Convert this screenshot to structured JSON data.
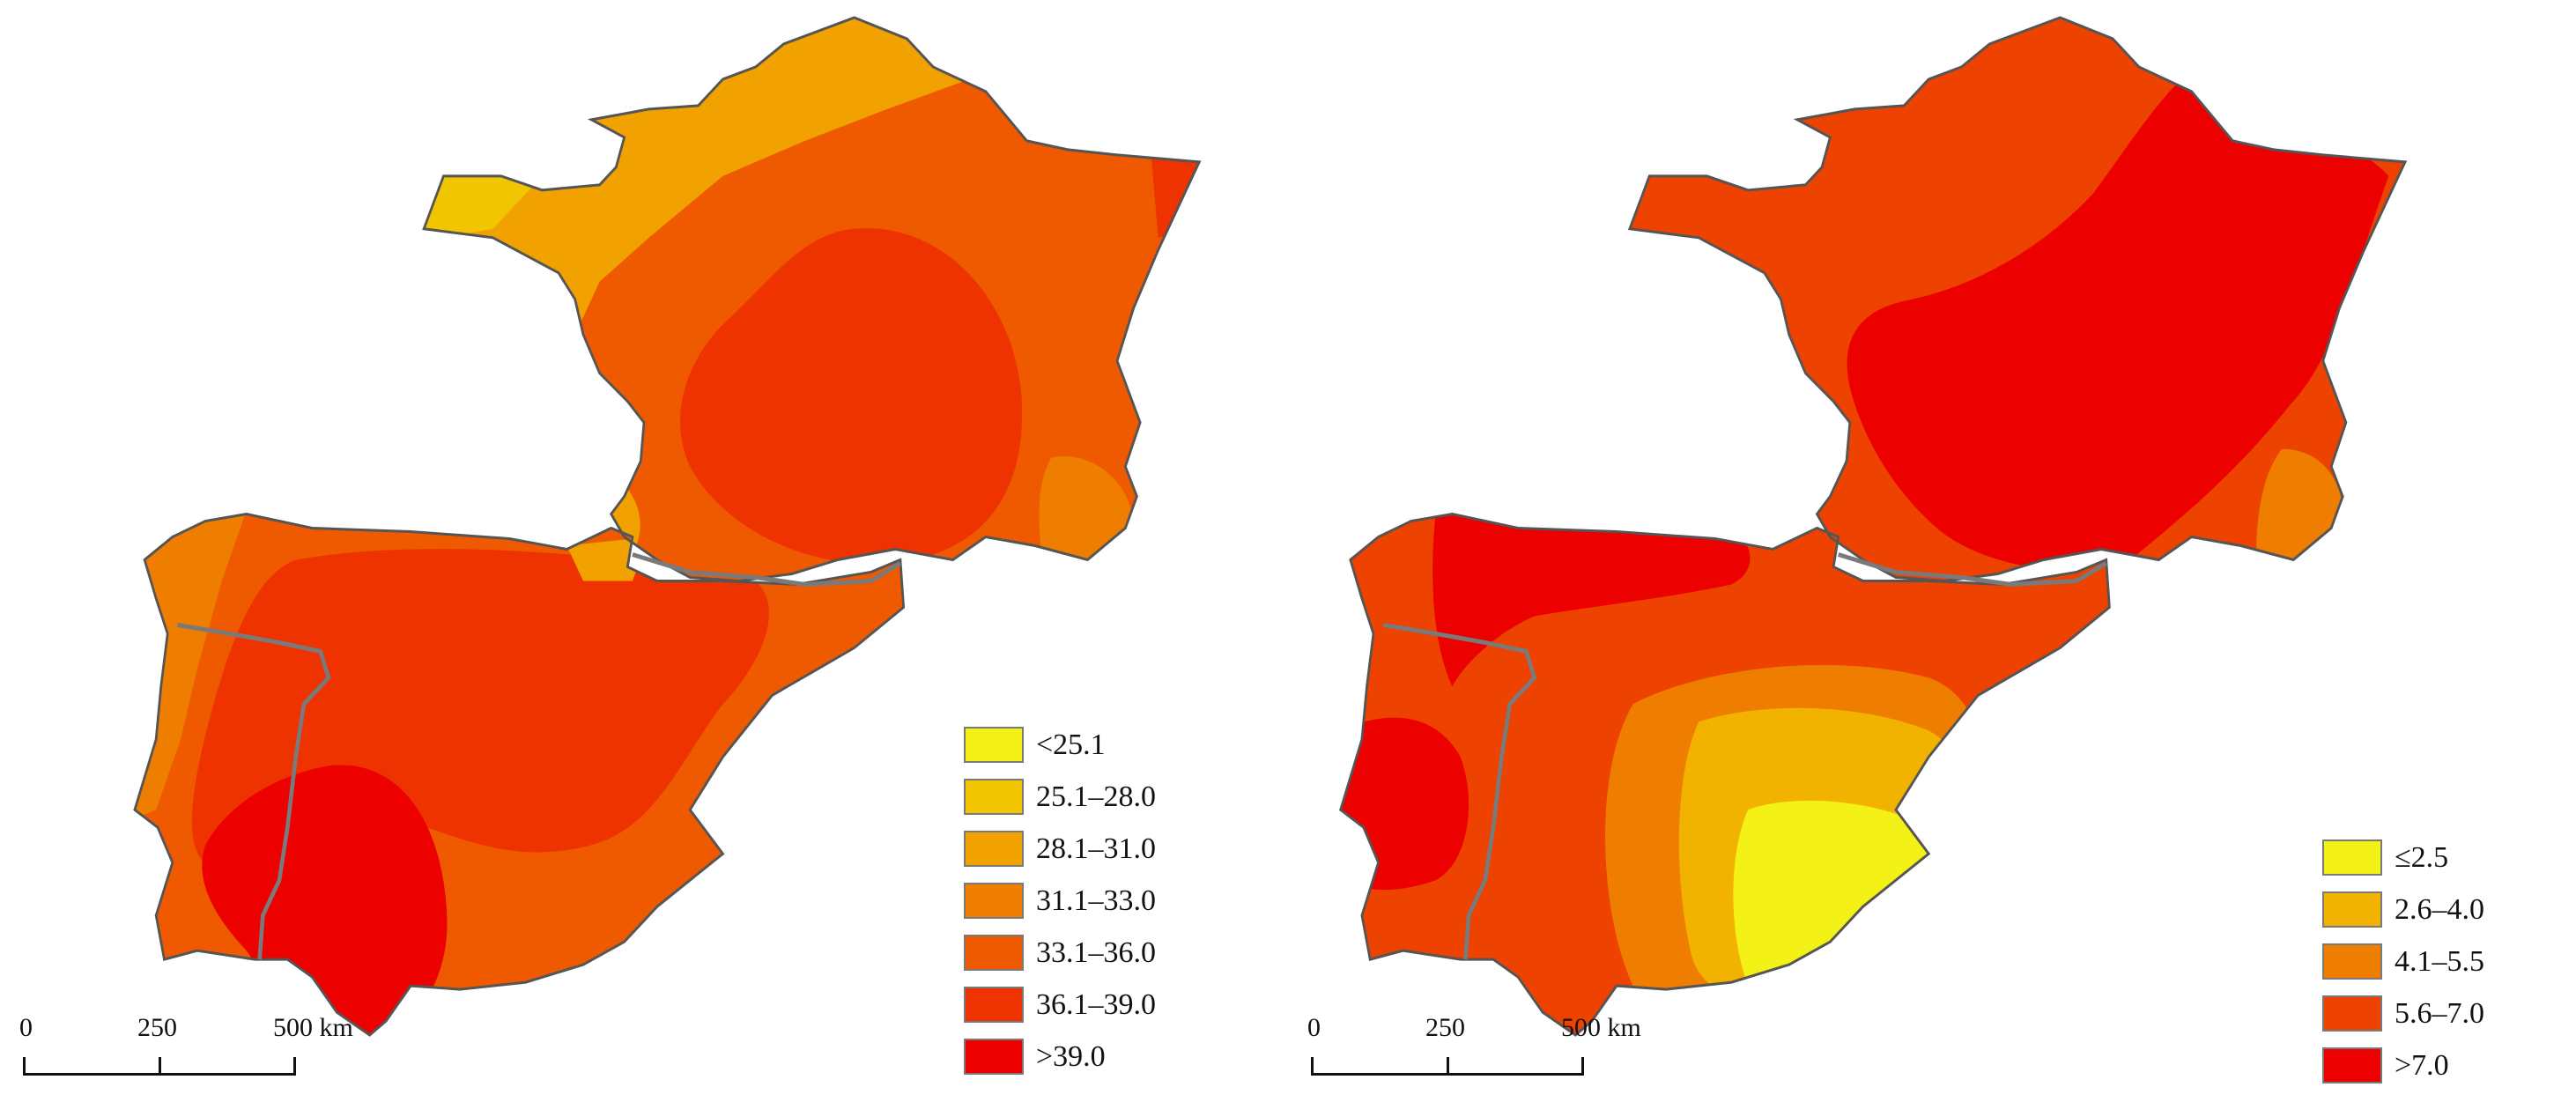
{
  "colors": {
    "c1": "#f4f116",
    "c2": "#f1c500",
    "c3": "#f1a100",
    "c4": "#ef7e00",
    "c5": "#ef5a00",
    "c6": "#ee3200",
    "c7": "#ec0000",
    "border": "#7a7a7a",
    "coast": "#555555"
  },
  "left_map": {
    "legend": [
      {
        "label": "<25.1",
        "color": "#f4f116"
      },
      {
        "label": "25.1–28.0",
        "color": "#f1c500"
      },
      {
        "label": "28.1–31.0",
        "color": "#f1a100"
      },
      {
        "label": "31.1–33.0",
        "color": "#ef7e00"
      },
      {
        "label": "33.1–36.0",
        "color": "#ef5a00"
      },
      {
        "label": "36.1–39.0",
        "color": "#ee3200"
      },
      {
        "label": ">39.0",
        "color": "#ec0000"
      }
    ],
    "scale": {
      "zero": "0",
      "mid": "250",
      "end": "500 km"
    }
  },
  "right_map": {
    "legend": [
      {
        "label": "≤2.5",
        "color": "#f4f116"
      },
      {
        "label": "2.6–4.0",
        "color": "#f1b300"
      },
      {
        "label": "4.1–5.5",
        "color": "#ef7e00"
      },
      {
        "label": "5.6–7.0",
        "color": "#ee4200"
      },
      {
        "label": ">7.0",
        "color": "#ec0000"
      }
    ],
    "scale": {
      "zero": "0",
      "mid": "250",
      "end": "500 km"
    }
  }
}
